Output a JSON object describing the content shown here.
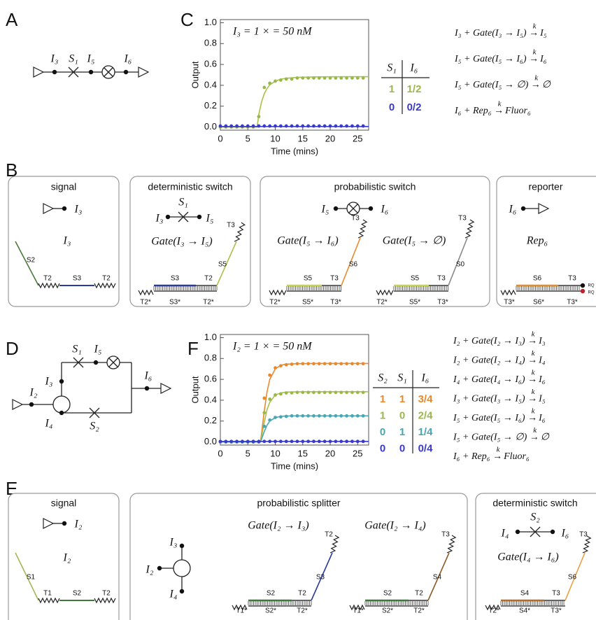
{
  "panel_labels": [
    "A",
    "B",
    "C",
    "D",
    "E",
    "F"
  ],
  "panel_a": {
    "labels": [
      "I₃",
      "S₁",
      "I₅",
      "I₆"
    ]
  },
  "panel_d": {
    "labels": [
      "I₂",
      "I₃",
      "S₁",
      "I₅",
      "I₆",
      "I₄",
      "S₂"
    ]
  },
  "chart_data": [
    {
      "type": "line",
      "annotation": "I₃ = 1 × = 50 nM",
      "x_label": "Time (mins)",
      "y_label": "Output",
      "xlim": [
        0,
        27
      ],
      "xticks": [
        0,
        5,
        10,
        15,
        20,
        25
      ],
      "ylim": [
        -0.03,
        1.03
      ],
      "yticks": [
        {
          "value": 0,
          "label": "0.0"
        },
        0.2,
        0.4,
        0.6,
        0.8,
        {
          "value": 1,
          "label": "1.0"
        }
      ],
      "series": [
        {
          "style": "line",
          "color": "#a9c14c",
          "x": [
            0,
            6.7,
            7,
            7.5,
            8,
            8.5,
            9,
            10,
            11,
            12,
            14,
            17,
            20,
            24,
            27
          ],
          "values": [
            0,
            0,
            0.12,
            0.24,
            0.32,
            0.37,
            0.405,
            0.44,
            0.458,
            0.468,
            0.476,
            0.48,
            0.482,
            0.483,
            0.483
          ]
        },
        {
          "style": "points",
          "color": "#9ab84a",
          "x": [
            0,
            1,
            2,
            3,
            4,
            5,
            6,
            7,
            8,
            9,
            10,
            11,
            12,
            13,
            14,
            15,
            16,
            17,
            18,
            19,
            20,
            21,
            22,
            23,
            24,
            25,
            26
          ],
          "values": [
            0,
            0,
            0,
            0,
            0,
            0,
            0,
            0.1,
            0.38,
            0.42,
            0.44,
            0.45,
            0.46,
            0.46,
            0.47,
            0.47,
            0.47,
            0.47,
            0.47,
            0.47,
            0.47,
            0.47,
            0.47,
            0.47,
            0.47,
            0.47,
            0.47
          ]
        },
        {
          "style": "line",
          "color": "#3a3ac8",
          "x": [
            0,
            27
          ],
          "values": [
            0.005,
            0.005
          ]
        },
        {
          "style": "points",
          "color": "#3a3ac8",
          "x": [
            0,
            1,
            2,
            3,
            4,
            5,
            6,
            7,
            8,
            9,
            10,
            11,
            12,
            13,
            14,
            15,
            16,
            17,
            18,
            19,
            20,
            21,
            22,
            23,
            24,
            25,
            26
          ],
          "values": [
            0.01,
            0.01,
            0.01,
            0.01,
            0.01,
            0.01,
            0.01,
            0.01,
            0.01,
            0.01,
            0.01,
            0.01,
            0.01,
            0.01,
            0.01,
            0.01,
            0.01,
            0.01,
            0.01,
            0.01,
            0.01,
            0.01,
            0.01,
            0.01,
            0.01,
            0.01,
            0.01
          ]
        }
      ]
    },
    {
      "type": "line",
      "annotation": "I₂ = 1 × = 50 nM",
      "x_label": "Time (mins)",
      "y_label": "Output",
      "xlim": [
        0,
        27
      ],
      "xticks": [
        0,
        5,
        10,
        15,
        20,
        25
      ],
      "ylim": [
        -0.03,
        1.03
      ],
      "yticks": [
        {
          "value": 0,
          "label": "0.0"
        },
        0.2,
        0.4,
        0.6,
        0.8,
        {
          "value": 1,
          "label": "1.0"
        }
      ],
      "series": [
        {
          "style": "line",
          "color": "#e8892e",
          "x": [
            0,
            7.3,
            7.5,
            8,
            8.5,
            9,
            10,
            11,
            12,
            14,
            17,
            20,
            27
          ],
          "values": [
            0,
            0,
            0.08,
            0.3,
            0.48,
            0.6,
            0.7,
            0.735,
            0.745,
            0.75,
            0.752,
            0.752,
            0.752
          ]
        },
        {
          "style": "points",
          "color": "#e8892e",
          "x": [
            0,
            1,
            2,
            3,
            4,
            5,
            6,
            7,
            8,
            9,
            10,
            11,
            12,
            13,
            14,
            15,
            16,
            17,
            18,
            19,
            20,
            21,
            22,
            23,
            24,
            25,
            26
          ],
          "values": [
            0,
            0,
            0,
            0,
            0,
            0,
            0,
            0,
            0.42,
            0.64,
            0.71,
            0.73,
            0.74,
            0.745,
            0.75,
            0.75,
            0.75,
            0.75,
            0.75,
            0.75,
            0.75,
            0.75,
            0.75,
            0.75,
            0.75,
            0.75,
            0.75
          ]
        },
        {
          "style": "line",
          "color": "#a9c14c",
          "x": [
            0,
            7.3,
            7.5,
            8,
            8.5,
            9,
            10,
            11,
            12,
            14,
            17,
            20,
            27
          ],
          "values": [
            0,
            0,
            0.05,
            0.19,
            0.31,
            0.38,
            0.45,
            0.47,
            0.478,
            0.48,
            0.481,
            0.481,
            0.481
          ]
        },
        {
          "style": "points",
          "color": "#9ab84a",
          "x": [
            0,
            1,
            2,
            3,
            4,
            5,
            6,
            7,
            8,
            9,
            10,
            11,
            12,
            13,
            14,
            15,
            16,
            17,
            18,
            19,
            20,
            21,
            22,
            23,
            24,
            25,
            26
          ],
          "values": [
            0,
            0,
            0,
            0,
            0,
            0,
            0,
            0,
            0.28,
            0.41,
            0.45,
            0.46,
            0.47,
            0.47,
            0.475,
            0.475,
            0.475,
            0.475,
            0.475,
            0.475,
            0.475,
            0.475,
            0.475,
            0.475,
            0.475,
            0.475,
            0.475
          ]
        },
        {
          "style": "line",
          "color": "#4aa6b0",
          "x": [
            0,
            7.3,
            7.5,
            8,
            8.5,
            9,
            10,
            11,
            12,
            14,
            17,
            20,
            27
          ],
          "values": [
            0,
            0,
            0.027,
            0.1,
            0.16,
            0.2,
            0.233,
            0.245,
            0.248,
            0.25,
            0.25,
            0.25,
            0.25
          ]
        },
        {
          "style": "points",
          "color": "#4aa6b0",
          "x": [
            0,
            1,
            2,
            3,
            4,
            5,
            6,
            7,
            8,
            9,
            10,
            11,
            12,
            13,
            14,
            15,
            16,
            17,
            18,
            19,
            20,
            21,
            22,
            23,
            24,
            25,
            26
          ],
          "values": [
            0,
            0,
            0,
            0,
            0,
            0,
            0,
            0,
            0.15,
            0.21,
            0.235,
            0.24,
            0.245,
            0.25,
            0.25,
            0.25,
            0.25,
            0.25,
            0.25,
            0.25,
            0.25,
            0.25,
            0.25,
            0.25,
            0.25,
            0.25,
            0.25
          ]
        },
        {
          "style": "line",
          "color": "#3a3ac8",
          "x": [
            0,
            27
          ],
          "values": [
            0.005,
            0.005
          ]
        },
        {
          "style": "points",
          "color": "#3a3ac8",
          "x": [
            0,
            1,
            2,
            3,
            4,
            5,
            6,
            7,
            8,
            9,
            10,
            11,
            12,
            13,
            14,
            15,
            16,
            17,
            18,
            19,
            20,
            21,
            22,
            23,
            24,
            25,
            26
          ],
          "values": [
            0.005,
            0.005,
            0.005,
            0.005,
            0.005,
            0.005,
            0.005,
            0.005,
            0.005,
            0.005,
            0.005,
            0.005,
            0.005,
            0.005,
            0.005,
            0.005,
            0.005,
            0.005,
            0.005,
            0.005,
            0.005,
            0.005,
            0.005,
            0.005,
            0.005,
            0.005,
            0.005
          ]
        }
      ]
    }
  ],
  "table_c": {
    "header": [
      "S₁",
      "I₆"
    ],
    "rows": [
      [
        "1",
        "1/2"
      ],
      [
        "0",
        "0/2"
      ]
    ],
    "colors": [
      "#9ab84a",
      "#3a3ac8"
    ]
  },
  "table_f": {
    "header": [
      "S₂",
      "S₁",
      "I₆"
    ],
    "rows": [
      [
        "1",
        "1",
        "3/4"
      ],
      [
        "1",
        "0",
        "2/4"
      ],
      [
        "0",
        "1",
        "1/4"
      ],
      [
        "0",
        "0",
        "0/4"
      ]
    ],
    "colors": [
      "#e8892e",
      "#9ab84a",
      "#4aa6b0",
      "#3a3ac8"
    ]
  },
  "reactions_c": [
    {
      "lhs": "I₃ + Gate(I₃ → I₅) →",
      "rate": "k",
      "rhs": "I₅"
    },
    {
      "lhs": "I₅ + Gate(I₅ → I₆) →",
      "rate": "k",
      "rhs": "I₆"
    },
    {
      "lhs": "I₅ + Gate(I₅ → ∅) →",
      "rate": "k",
      "rhs": "∅"
    },
    {
      "lhs": "I₆ + Rep₆ →",
      "rate": "k",
      "rhs": "Fluor₆"
    }
  ],
  "reactions_f": [
    {
      "lhs": "I₂ + Gate(I₂ → I₃) →",
      "rate": "k",
      "rhs": "I₃"
    },
    {
      "lhs": "I₂ + Gate(I₂ → I₄) →",
      "rate": "k",
      "rhs": "I₄"
    },
    {
      "lhs": "I₄ + Gate(I₄ → I₆) →",
      "rate": "k",
      "rhs": "I₆"
    },
    {
      "lhs": "I₃ + Gate(I₃ → I₅) →",
      "rate": "k",
      "rhs": "I₅"
    },
    {
      "lhs": "I₅ + Gate(I₅ → I₆) →",
      "rate": "k",
      "rhs": "I₆"
    },
    {
      "lhs": "I₅ + Gate(I₅ → ∅) →",
      "rate": "k",
      "rhs": "∅"
    },
    {
      "lhs": "I₆ + Rep₆ →",
      "rate": "k",
      "rhs": "Fluor₆"
    }
  ],
  "panel_b": [
    {
      "title": "signal",
      "symbol": [
        "I₃"
      ],
      "species": "I₃",
      "strands": [
        "S2",
        "T2",
        "S3",
        "T2"
      ]
    },
    {
      "title": "deterministic switch",
      "symbol": [
        "I₃",
        "S₁",
        "I₅"
      ],
      "gates": [
        "Gate(I₃ → I₅)"
      ],
      "strands": [
        "S3",
        "T2",
        "T3",
        "S5",
        "T2*",
        "S3*",
        "T2*"
      ]
    },
    {
      "title": "probabilistic switch",
      "symbol": [
        "I₅",
        "I₆"
      ],
      "gates": [
        "Gate(I₅ → I₆)",
        "Gate(I₅ → ∅)"
      ],
      "strands": [
        "S5",
        "T3",
        "T3",
        "S6",
        "T2*",
        "S5*",
        "T3*",
        "S5",
        "T3",
        "T3",
        "S0",
        "T2*",
        "S5*",
        "T3*"
      ]
    },
    {
      "title": "reporter",
      "symbol": [
        "I₆"
      ],
      "species": "Rep₆",
      "strands": [
        "S6",
        "T3",
        "T3*",
        "S6*",
        "T3*",
        "RQ",
        "RQ"
      ]
    }
  ],
  "panel_e": [
    {
      "title": "signal",
      "symbol": [
        "I₂"
      ],
      "species": "I₂",
      "strands": [
        "S1",
        "T1",
        "S2",
        "T2"
      ]
    },
    {
      "title": "probabilistic splitter",
      "symbol": [
        "I₃",
        "I₂",
        "I₄"
      ],
      "gates": [
        "Gate(I₂ → I₃)",
        "Gate(I₂ → I₄)"
      ],
      "strands": [
        "S2",
        "T2",
        "T2",
        "S3",
        "T1*",
        "S2*",
        "T2*",
        "S2",
        "T2",
        "T3",
        "S4",
        "T1*",
        "S2*",
        "T2*"
      ]
    },
    {
      "title": "deterministic switch",
      "symbol": [
        "S₂",
        "I₄",
        "I₆"
      ],
      "gates": [
        "Gate(I₄ → I₆)"
      ],
      "strands": [
        "S4",
        "T3",
        "T3",
        "S6",
        "T2*",
        "S4*",
        "T3*"
      ]
    }
  ]
}
